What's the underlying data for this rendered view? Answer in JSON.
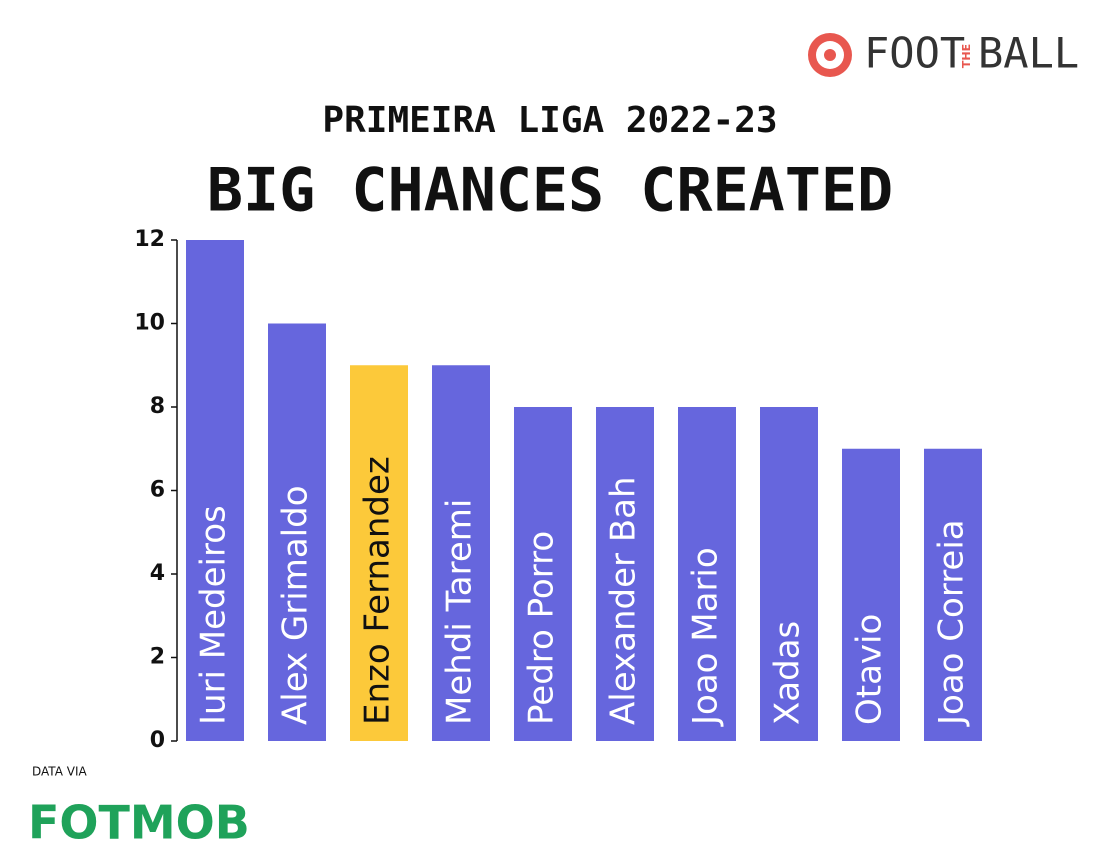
{
  "chart_data": {
    "type": "bar",
    "title": "BIG CHANCES CREATED",
    "subtitle": "PRIMEIRA LIGA 2022-23",
    "brand": [
      "FOOT",
      "THE",
      "BALL"
    ],
    "source_prefix": "DATA VIA",
    "source": "FOTMOB",
    "categories": [
      "Iuri Medeiros",
      "Alex Grimaldo",
      "Enzo Fernandez",
      "Mehdi Taremi",
      "Pedro Porro",
      "Alexander Bah",
      "Joao Mario",
      "Xadas",
      "Otavio",
      "Joao Correia"
    ],
    "values": [
      12,
      10,
      9,
      9,
      8,
      8,
      8,
      8,
      7,
      7
    ],
    "colors": [
      "#6666dd",
      "#6666dd",
      "#fcc93a",
      "#6666dd",
      "#6666dd",
      "#6666dd",
      "#6666dd",
      "#6666dd",
      "#6666dd",
      "#6666dd"
    ],
    "label_colors": [
      "#ffffff",
      "#ffffff",
      "#111111",
      "#ffffff",
      "#ffffff",
      "#ffffff",
      "#ffffff",
      "#ffffff",
      "#ffffff",
      "#ffffff"
    ],
    "ylim": [
      0,
      12
    ],
    "yticks": [
      0,
      2,
      4,
      6,
      8,
      10,
      12
    ],
    "grid": false
  }
}
